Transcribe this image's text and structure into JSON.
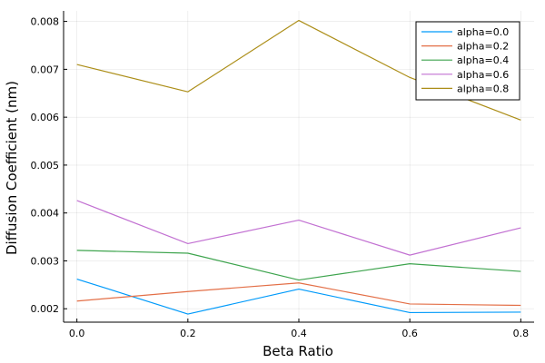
{
  "chart_data": {
    "type": "line",
    "title": "",
    "xlabel": "Beta Ratio",
    "ylabel": "Diffusion Coefficient (nm)",
    "x": [
      0.0,
      0.2,
      0.4,
      0.6,
      0.8
    ],
    "xlim": [
      -0.024,
      0.824
    ],
    "ylim": [
      0.00172,
      0.00822
    ],
    "xticks": [
      "0.0",
      "0.2",
      "0.4",
      "0.6",
      "0.8"
    ],
    "xtick_values": [
      0.0,
      0.2,
      0.4,
      0.6,
      0.8
    ],
    "yticks": [
      "0.002",
      "0.003",
      "0.004",
      "0.005",
      "0.006",
      "0.007",
      "0.008"
    ],
    "ytick_values": [
      0.002,
      0.003,
      0.004,
      0.005,
      0.006,
      0.007,
      0.008
    ],
    "grid": true,
    "legend_position": "top-right",
    "series": [
      {
        "name": "alpha=0.0",
        "color": "#009AFA",
        "values": [
          0.00262,
          0.00189,
          0.00241,
          0.00192,
          0.00193
        ]
      },
      {
        "name": "alpha=0.2",
        "color": "#E36F47",
        "values": [
          0.00216,
          0.00236,
          0.00254,
          0.0021,
          0.00207
        ]
      },
      {
        "name": "alpha=0.4",
        "color": "#3EA44E",
        "values": [
          0.00322,
          0.00316,
          0.0026,
          0.00294,
          0.00278
        ]
      },
      {
        "name": "alpha=0.6",
        "color": "#C271D2",
        "values": [
          0.00426,
          0.00336,
          0.00385,
          0.00312,
          0.00369
        ]
      },
      {
        "name": "alpha=0.8",
        "color": "#AC8E18",
        "values": [
          0.0071,
          0.00653,
          0.00802,
          0.00683,
          0.00594
        ]
      }
    ]
  }
}
